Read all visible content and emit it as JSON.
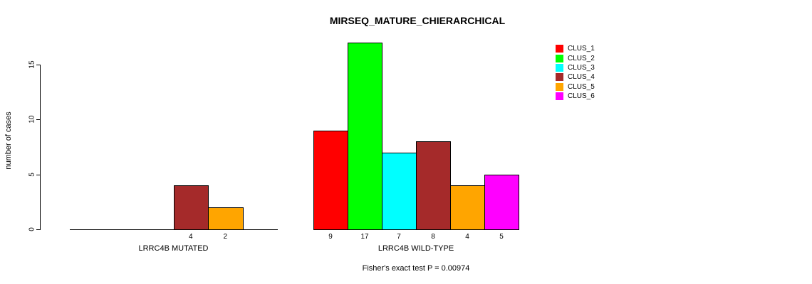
{
  "chart_data": {
    "type": "bar",
    "title": "MIRSEQ_MATURE_CHIERARCHICAL",
    "ylabel": "number of cases",
    "xlabel": "",
    "annotation": "Fisher's exact test P = 0.00974",
    "ylim": [
      0,
      17
    ],
    "yticks": [
      0,
      5,
      10,
      15
    ],
    "grid": false,
    "legend_position": "right",
    "legend": [
      {
        "label": "CLUS_1",
        "color": "#FF0000"
      },
      {
        "label": "CLUS_2",
        "color": "#00FF00"
      },
      {
        "label": "CLUS_3",
        "color": "#00FFFF"
      },
      {
        "label": "CLUS_4",
        "color": "#A52A2A"
      },
      {
        "label": "CLUS_5",
        "color": "#FFA500"
      },
      {
        "label": "CLUS_6",
        "color": "#FF00FF"
      }
    ],
    "groups": [
      {
        "label": "LRRC4B MUTATED",
        "series": [
          "CLUS_1",
          "CLUS_2",
          "CLUS_3",
          "CLUS_4",
          "CLUS_5",
          "CLUS_6"
        ],
        "values": [
          0,
          0,
          0,
          4,
          2,
          0
        ],
        "bar_labels": [
          "",
          "",
          "",
          "4",
          "2",
          ""
        ]
      },
      {
        "label": "LRRC4B WILD-TYPE",
        "series": [
          "CLUS_1",
          "CLUS_2",
          "CLUS_3",
          "CLUS_4",
          "CLUS_5",
          "CLUS_6"
        ],
        "values": [
          9,
          17,
          7,
          8,
          4,
          5
        ],
        "bar_labels": [
          "9",
          "17",
          "7",
          "8",
          "4",
          "5"
        ]
      }
    ]
  }
}
